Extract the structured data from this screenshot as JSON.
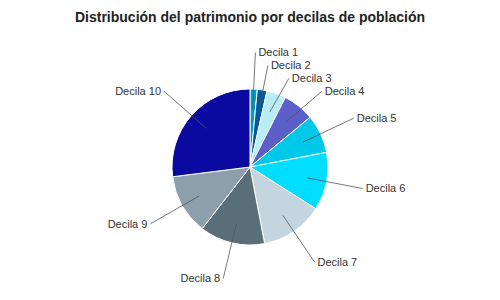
{
  "chart_data": {
    "type": "pie",
    "title": "Distribución del patrimonio por decilas de población",
    "categories": [
      "Decila 1",
      "Decila 2",
      "Decila 3",
      "Decila 4",
      "Decila 5",
      "Decila 6",
      "Decila 7",
      "Decila 8",
      "Decila 9",
      "Decila 10"
    ],
    "values": [
      1.5,
      2.0,
      4.0,
      6.5,
      8.0,
      12.0,
      13.0,
      13.5,
      12.5,
      27.0
    ],
    "colors": [
      "#009FBB",
      "#005A9E",
      "#B8EDF5",
      "#5B5FC7",
      "#00C8E8",
      "#00DDFF",
      "#C5D5DF",
      "#5A6E7A",
      "#8C9FAA",
      "#0A0AA0"
    ]
  }
}
